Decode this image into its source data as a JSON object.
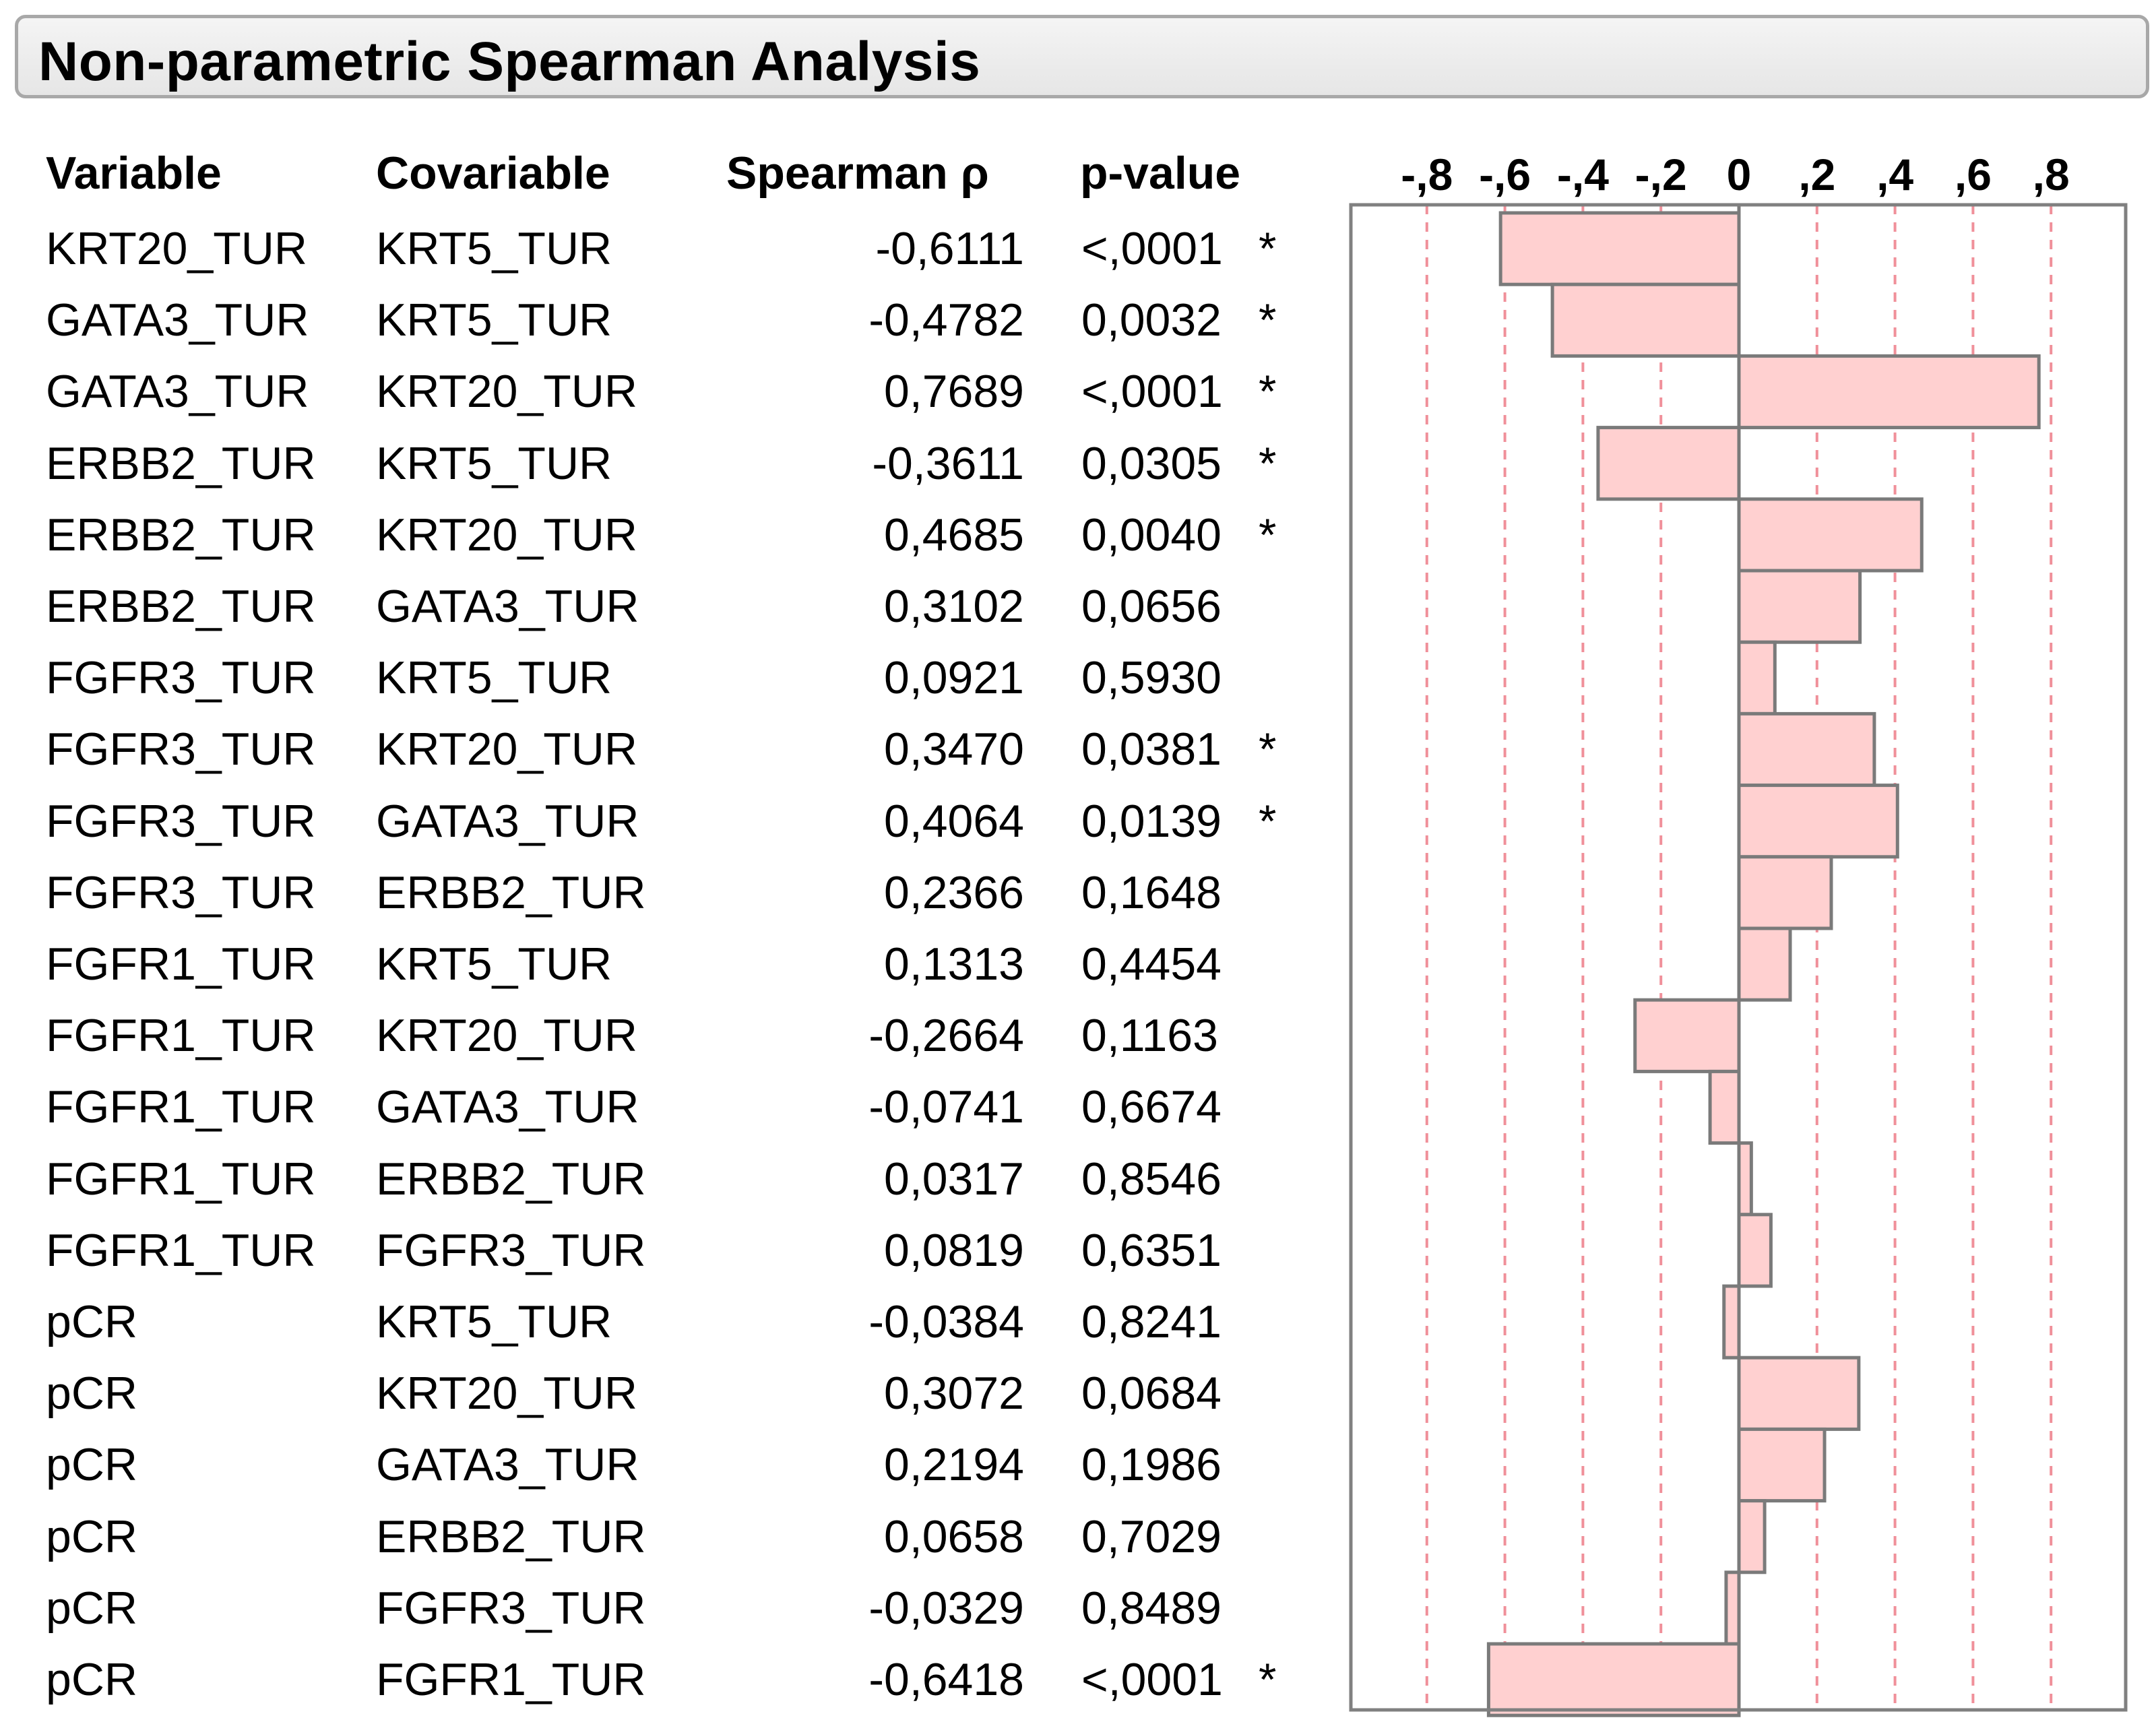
{
  "title": "Non-parametric Spearman Analysis",
  "headers": {
    "variable": "Variable",
    "covariable": "Covariable",
    "spearman": "Spearman ρ",
    "pvalue": "p-value"
  },
  "rows": [
    {
      "variable": "KRT20_TUR",
      "covariable": "KRT5_TUR",
      "rho_text": "-0,6111",
      "p_text": "<,0001",
      "sig": "*"
    },
    {
      "variable": "GATA3_TUR",
      "covariable": "KRT5_TUR",
      "rho_text": "-0,4782",
      "p_text": "0,0032",
      "sig": "*"
    },
    {
      "variable": "GATA3_TUR",
      "covariable": "KRT20_TUR",
      "rho_text": "0,7689",
      "p_text": "<,0001",
      "sig": "*"
    },
    {
      "variable": "ERBB2_TUR",
      "covariable": "KRT5_TUR",
      "rho_text": "-0,3611",
      "p_text": "0,0305",
      "sig": "*"
    },
    {
      "variable": "ERBB2_TUR",
      "covariable": "KRT20_TUR",
      "rho_text": "0,4685",
      "p_text": "0,0040",
      "sig": "*"
    },
    {
      "variable": "ERBB2_TUR",
      "covariable": "GATA3_TUR",
      "rho_text": "0,3102",
      "p_text": "0,0656",
      "sig": ""
    },
    {
      "variable": "FGFR3_TUR",
      "covariable": "KRT5_TUR",
      "rho_text": "0,0921",
      "p_text": "0,5930",
      "sig": ""
    },
    {
      "variable": "FGFR3_TUR",
      "covariable": "KRT20_TUR",
      "rho_text": "0,3470",
      "p_text": "0,0381",
      "sig": "*"
    },
    {
      "variable": "FGFR3_TUR",
      "covariable": "GATA3_TUR",
      "rho_text": "0,4064",
      "p_text": "0,0139",
      "sig": "*"
    },
    {
      "variable": "FGFR3_TUR",
      "covariable": "ERBB2_TUR",
      "rho_text": "0,2366",
      "p_text": "0,1648",
      "sig": ""
    },
    {
      "variable": "FGFR1_TUR",
      "covariable": "KRT5_TUR",
      "rho_text": "0,1313",
      "p_text": "0,4454",
      "sig": ""
    },
    {
      "variable": "FGFR1_TUR",
      "covariable": "KRT20_TUR",
      "rho_text": "-0,2664",
      "p_text": "0,1163",
      "sig": ""
    },
    {
      "variable": "FGFR1_TUR",
      "covariable": "GATA3_TUR",
      "rho_text": "-0,0741",
      "p_text": "0,6674",
      "sig": ""
    },
    {
      "variable": "FGFR1_TUR",
      "covariable": "ERBB2_TUR",
      "rho_text": "0,0317",
      "p_text": "0,8546",
      "sig": ""
    },
    {
      "variable": "FGFR1_TUR",
      "covariable": "FGFR3_TUR",
      "rho_text": "0,0819",
      "p_text": "0,6351",
      "sig": ""
    },
    {
      "variable": "pCR",
      "covariable": "KRT5_TUR",
      "rho_text": "-0,0384",
      "p_text": "0,8241",
      "sig": ""
    },
    {
      "variable": "pCR",
      "covariable": "KRT20_TUR",
      "rho_text": "0,3072",
      "p_text": "0,0684",
      "sig": ""
    },
    {
      "variable": "pCR",
      "covariable": "GATA3_TUR",
      "rho_text": "0,2194",
      "p_text": "0,1986",
      "sig": ""
    },
    {
      "variable": "pCR",
      "covariable": "ERBB2_TUR",
      "rho_text": "0,0658",
      "p_text": "0,7029",
      "sig": ""
    },
    {
      "variable": "pCR",
      "covariable": "FGFR3_TUR",
      "rho_text": "-0,0329",
      "p_text": "0,8489",
      "sig": ""
    },
    {
      "variable": "pCR",
      "covariable": "FGFR1_TUR",
      "rho_text": "-0,6418",
      "p_text": "<,0001",
      "sig": "*"
    }
  ],
  "chart_data": {
    "type": "bar",
    "orientation": "horizontal",
    "title": "Non-parametric Spearman Analysis",
    "xlabel": "Spearman ρ",
    "xlim": [
      -1,
      1
    ],
    "ticks": [
      -0.8,
      -0.6,
      -0.4,
      -0.2,
      0,
      0.2,
      0.4,
      0.6,
      0.8
    ],
    "tick_labels": [
      "-,8",
      "-,6",
      "-,4",
      "-,2",
      "0",
      ",2",
      ",4",
      ",6",
      ",8"
    ],
    "categories": [
      "KRT20_TUR / KRT5_TUR",
      "GATA3_TUR / KRT5_TUR",
      "GATA3_TUR / KRT20_TUR",
      "ERBB2_TUR / KRT5_TUR",
      "ERBB2_TUR / KRT20_TUR",
      "ERBB2_TUR / GATA3_TUR",
      "FGFR3_TUR / KRT5_TUR",
      "FGFR3_TUR / KRT20_TUR",
      "FGFR3_TUR / GATA3_TUR",
      "FGFR3_TUR / ERBB2_TUR",
      "FGFR1_TUR / KRT5_TUR",
      "FGFR1_TUR / KRT20_TUR",
      "FGFR1_TUR / GATA3_TUR",
      "FGFR1_TUR / ERBB2_TUR",
      "FGFR1_TUR / FGFR3_TUR",
      "pCR / KRT5_TUR",
      "pCR / KRT20_TUR",
      "pCR / GATA3_TUR",
      "pCR / ERBB2_TUR",
      "pCR / FGFR3_TUR",
      "pCR / FGFR1_TUR"
    ],
    "values": [
      -0.6111,
      -0.4782,
      0.7689,
      -0.3611,
      0.4685,
      0.3102,
      0.0921,
      0.347,
      0.4064,
      0.2366,
      0.1313,
      -0.2664,
      -0.0741,
      0.0317,
      0.0819,
      -0.0384,
      0.3072,
      0.2194,
      0.0658,
      -0.0329,
      -0.6418
    ],
    "grid": true
  },
  "colors": {
    "bar_fill": "#ffd0d0",
    "bar_stroke": "#7a7a7a",
    "grid": "#f0909a",
    "frame": "#808080",
    "title_border": "#a8a8a8"
  }
}
